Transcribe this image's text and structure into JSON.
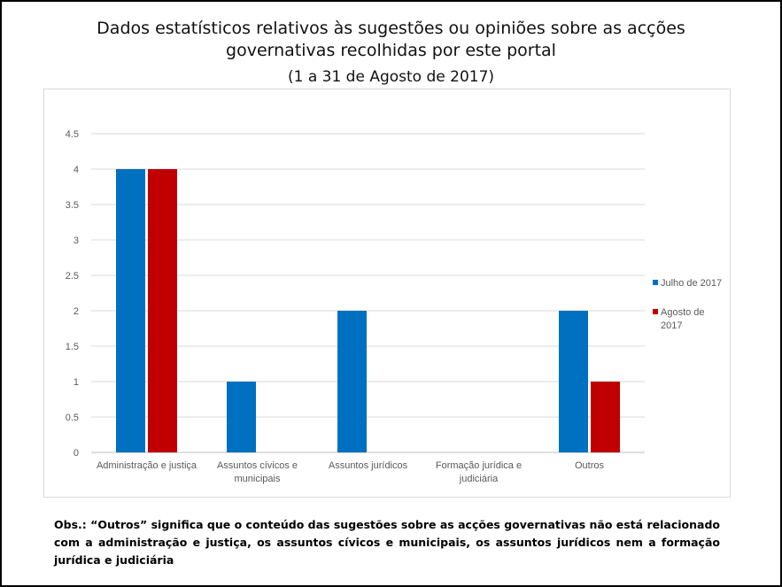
{
  "header": {
    "title_line1": "Dados estatísticos relativos às sugestões ou opiniões sobre as acções",
    "title_line2": "governativas recolhidas por este portal",
    "subtitle": "(1 a 31 de Agosto de 2017)"
  },
  "note": {
    "text": "Obs.: “Outros” significa que o conteúdo das sugestões sobre as acções governativas não está relacionado com a administração e justiça, os assuntos cívicos e municipais, os assuntos jurídicos nem a formação jurídica e judiciária"
  },
  "chart_data": {
    "type": "bar",
    "categories": [
      [
        "Administração e justiça"
      ],
      [
        "Assuntos cívicos e",
        "municipais"
      ],
      [
        "Assuntos jurídicos"
      ],
      [
        "Formação jurídica e",
        "judiciária"
      ],
      [
        "Outros"
      ]
    ],
    "series": [
      {
        "name_lines": [
          "Julho de 2017"
        ],
        "color": "#0070C0",
        "values": [
          4,
          1,
          2,
          0,
          2
        ]
      },
      {
        "name_lines": [
          "Agosto de",
          "2017"
        ],
        "color": "#C00000",
        "values": [
          4,
          0,
          0,
          0,
          1
        ]
      }
    ],
    "yticks": [
      "0",
      "0.5",
      "1",
      "1.5",
      "2",
      "2.5",
      "3",
      "3.5",
      "4",
      "4.5"
    ],
    "ylim": [
      0,
      4.5
    ],
    "grid": true,
    "legend": "right"
  }
}
